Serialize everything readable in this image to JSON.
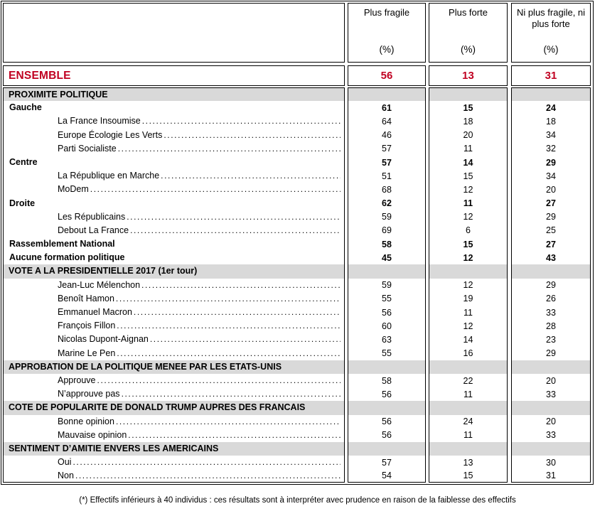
{
  "colors": {
    "accent_red": "#C00021",
    "section_gray": "#D9D9D9",
    "border": "#000000"
  },
  "table": {
    "columns": [
      {
        "label": "Plus fragile",
        "unit": "(%)"
      },
      {
        "label": "Plus forte",
        "unit": "(%)"
      },
      {
        "label": "Ni plus fragile, ni plus forte",
        "unit": "(%)"
      }
    ],
    "ensemble": {
      "label": "ENSEMBLE",
      "values": [
        "56",
        "13",
        "31"
      ]
    },
    "rows": [
      {
        "type": "section",
        "label": "PROXIMITE POLITIQUE",
        "values": [
          "",
          "",
          ""
        ]
      },
      {
        "type": "cat",
        "label": "Gauche",
        "values": [
          "61",
          "15",
          "24"
        ]
      },
      {
        "type": "item",
        "label": "La France Insoumise",
        "values": [
          "64",
          "18",
          "18"
        ]
      },
      {
        "type": "item",
        "label": "Europe Écologie Les Verts",
        "values": [
          "46",
          "20",
          "34"
        ]
      },
      {
        "type": "item",
        "label": "Parti Socialiste",
        "values": [
          "57",
          "11",
          "32"
        ]
      },
      {
        "type": "cat",
        "label": "Centre",
        "values": [
          "57",
          "14",
          "29"
        ]
      },
      {
        "type": "item",
        "label": "La République en Marche",
        "values": [
          "51",
          "15",
          "34"
        ]
      },
      {
        "type": "item",
        "label": "MoDem",
        "values": [
          "68",
          "12",
          "20"
        ]
      },
      {
        "type": "cat",
        "label": "Droite",
        "values": [
          "62",
          "11",
          "27"
        ]
      },
      {
        "type": "item",
        "label": "Les Républicains",
        "values": [
          "59",
          "12",
          "29"
        ]
      },
      {
        "type": "item",
        "label": "Debout La France",
        "values": [
          "69",
          "6",
          "25"
        ]
      },
      {
        "type": "cat",
        "label": "Rassemblement National",
        "values": [
          "58",
          "15",
          "27"
        ]
      },
      {
        "type": "cat",
        "label": "Aucune formation politique",
        "values": [
          "45",
          "12",
          "43"
        ]
      },
      {
        "type": "section",
        "label": "VOTE A LA PRESIDENTIELLE 2017 (1er tour)",
        "values": [
          "",
          "",
          ""
        ]
      },
      {
        "type": "item",
        "label": "Jean-Luc Mélenchon",
        "values": [
          "59",
          "12",
          "29"
        ]
      },
      {
        "type": "item",
        "label": "Benoît Hamon",
        "values": [
          "55",
          "19",
          "26"
        ]
      },
      {
        "type": "item",
        "label": "Emmanuel Macron",
        "values": [
          "56",
          "11",
          "33"
        ]
      },
      {
        "type": "item",
        "label": "François Fillon",
        "values": [
          "60",
          "12",
          "28"
        ]
      },
      {
        "type": "item",
        "label": "Nicolas Dupont-Aignan",
        "values": [
          "63",
          "14",
          "23"
        ]
      },
      {
        "type": "item",
        "label": "Marine Le Pen",
        "values": [
          "55",
          "16",
          "29"
        ]
      },
      {
        "type": "section",
        "label": "APPROBATION DE LA POLITIQUE MENEE PAR LES ETATS-UNIS",
        "values": [
          "",
          "",
          ""
        ]
      },
      {
        "type": "item",
        "label": "Approuve",
        "values": [
          "58",
          "22",
          "20"
        ]
      },
      {
        "type": "item",
        "label": "N’approuve pas",
        "values": [
          "56",
          "11",
          "33"
        ]
      },
      {
        "type": "section",
        "label": "COTE DE POPULARITE DE DONALD TRUMP AUPRES DES FRANCAIS",
        "values": [
          "",
          "",
          ""
        ]
      },
      {
        "type": "item",
        "label": "Bonne opinion",
        "values": [
          "56",
          "24",
          "20"
        ]
      },
      {
        "type": "item",
        "label": "Mauvaise opinion",
        "values": [
          "56",
          "11",
          "33"
        ]
      },
      {
        "type": "section",
        "label": "SENTIMENT D’AMITIE ENVERS LES AMERICAINS",
        "values": [
          "",
          "",
          ""
        ]
      },
      {
        "type": "item",
        "label": "Oui",
        "values": [
          "57",
          "13",
          "30"
        ]
      },
      {
        "type": "item",
        "label": "Non",
        "values": [
          "54",
          "15",
          "31"
        ]
      }
    ]
  },
  "footnote": "(*) Effectifs inférieurs à 40 individus : ces résultats sont à interpréter avec prudence en raison de la faiblesse des effectifs"
}
